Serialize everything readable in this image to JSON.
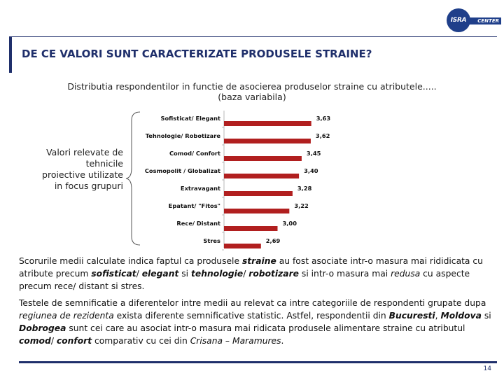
{
  "logo": {
    "mark": "ISRA",
    "text": "CENTER"
  },
  "title": "DE CE VALORI SUNT CARACTERIZATE PRODUSELE STRAINE?",
  "subtitle": "Distributia respondentilor in functie de asocierea produselor straine cu atributele..... (baza variabila)",
  "side_note": "Valori relevate de tehnicile proiective utilizate in focus grupuri",
  "chart_data": {
    "type": "bar",
    "orientation": "horizontal",
    "categories": [
      "Sofisticat/ Elegant",
      "Tehnologie/ Robotizare",
      "Comod/ Confort",
      "Cosmopolit / Globalizat",
      "Extravagant",
      "Epatant/ \"Fitos\"",
      "Rece/ Distant",
      "Stres"
    ],
    "values": [
      3.63,
      3.62,
      3.45,
      3.4,
      3.28,
      3.22,
      3.0,
      2.69
    ],
    "value_labels": [
      "3,63",
      "3,62",
      "3,45",
      "3,40",
      "3,28",
      "3,22",
      "3,00",
      "2,69"
    ],
    "bar_color": "#b11f1f",
    "grid": false,
    "legend": "none"
  },
  "paragraph1": {
    "t1": "Scorurile medii calculate indica faptul ca produsele ",
    "b1": "straine",
    "t2": " au fost asociate intr-o masura mai rididicata cu atribute precum ",
    "b2": "sofisticat",
    "t3": "/ ",
    "b3": "elegant",
    "t4": " si ",
    "b4": "tehnologie",
    "t5": "/ ",
    "b5": "robotizare",
    "t6": " si intr-o masura mai ",
    "i1": "redusa",
    "t7": " cu aspecte precum rece/ distant si stres."
  },
  "paragraph2": {
    "t1": "Testele de semnificatie a diferentelor intre medii au relevat ca intre categoriile de respondenti grupate dupa ",
    "i1": "regiunea de rezidenta",
    "t2": " exista diferente semnificative statistic. Astfel, respondentii din ",
    "b1": "Bucuresti",
    "t3": ", ",
    "b2": "Moldova",
    "t4": " si ",
    "b3": "Dobrogea",
    "t5": " sunt cei care au asociat intr-o masura mai ridicata produsele alimentare straine cu atributul ",
    "b4": "comod",
    "t6": "/ ",
    "b5": "confort",
    "t7": " comparativ cu cei din ",
    "i2": "Crisana – Maramures",
    "t8": "."
  },
  "page_number": "14"
}
